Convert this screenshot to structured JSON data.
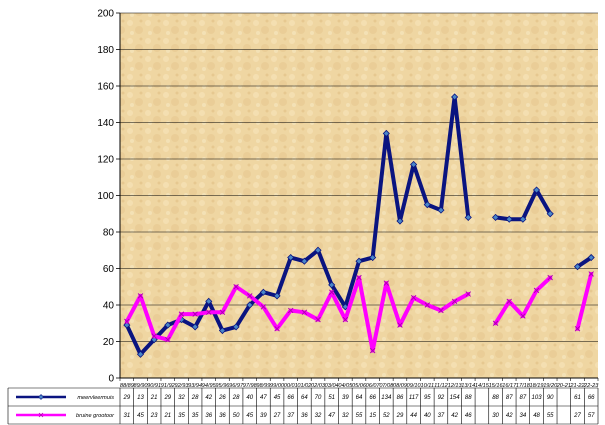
{
  "chart_data": {
    "type": "line",
    "title": "",
    "xlabel": "",
    "ylabel": "",
    "ylim": [
      0,
      200
    ],
    "yticks": [
      0,
      20,
      40,
      60,
      80,
      100,
      120,
      140,
      160,
      180,
      200
    ],
    "grid": "horizontal",
    "legend": "data-table-below",
    "plot_background": "#f0d8a0",
    "categories": [
      "88/89",
      "89/90",
      "90/91",
      "91/92",
      "92/93",
      "93/94",
      "94/95",
      "95/96",
      "96/97",
      "97/98",
      "98/99",
      "99/00",
      "00/01",
      "01/02",
      "02/03",
      "03/04",
      "04/05",
      "05/06",
      "06/07",
      "07/08",
      "08/09",
      "09/10",
      "10/11",
      "11/12",
      "12/13",
      "13/14",
      "14/15",
      "15/16",
      "16/17",
      "17/18",
      "18/19",
      "19/20",
      "20-21",
      "21-22",
      "22-23"
    ],
    "series": [
      {
        "name": "meervleermuis",
        "color": "#0a1480",
        "marker": "diamond",
        "values": [
          29,
          13,
          21,
          29,
          32,
          28,
          42,
          26,
          28,
          40,
          47,
          45,
          66,
          64,
          70,
          51,
          39,
          64,
          66,
          134,
          86,
          117,
          95,
          92,
          154,
          88,
          null,
          88,
          87,
          87,
          103,
          90,
          null,
          61,
          66
        ]
      },
      {
        "name": "bruine grootoor",
        "color": "#ff00ff",
        "marker": "x",
        "values": [
          31,
          45,
          23,
          21,
          35,
          35,
          36,
          36,
          50,
          45,
          39,
          27,
          37,
          36,
          32,
          47,
          32,
          55,
          15,
          52,
          29,
          44,
          40,
          37,
          42,
          46,
          null,
          30,
          42,
          34,
          48,
          55,
          null,
          27,
          57
        ]
      }
    ]
  }
}
